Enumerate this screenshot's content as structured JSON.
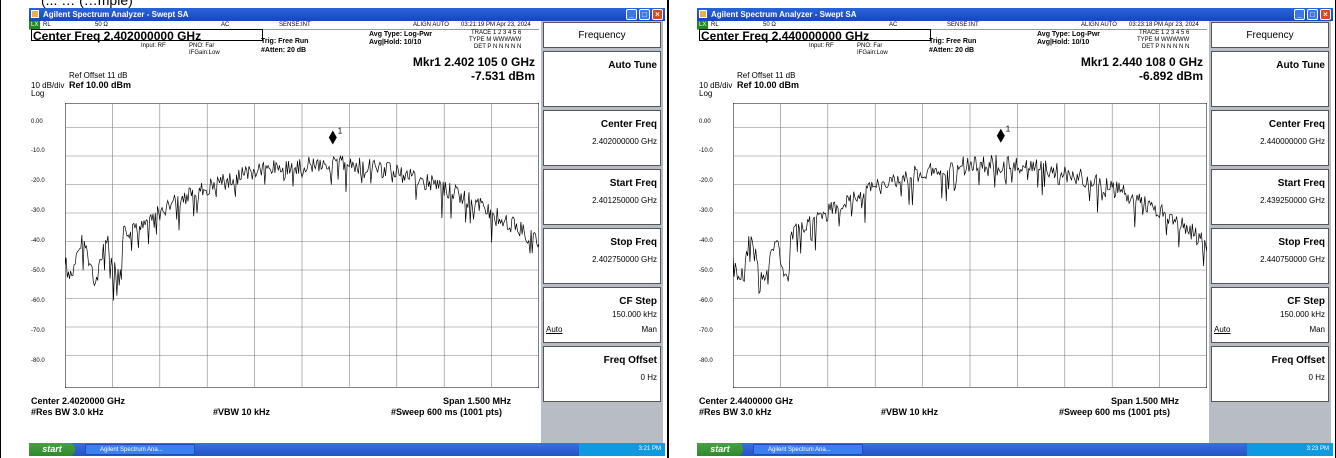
{
  "caption": "(... … (…mple)",
  "screens": [
    {
      "title": "Agilent Spectrum Analyzer - Swept SA",
      "status": {
        "rl": "RL",
        "ohm": "50 Ω",
        "ac": "AC",
        "sense": "SENSE:INT",
        "align": "ALIGN AUTO",
        "time": "03:21:19 PM Apr 23, 2024",
        "lx": "LX"
      },
      "center_freq": "Center Freq  2.402000000 GHz",
      "input": "Input: RF",
      "pno": "PNO: Far",
      "ifgain": "IFGain:Low",
      "trig": "Trig: Free Run",
      "atten": "#Atten: 20 dB",
      "avg_type": "Avg Type: Log-Pwr",
      "avg_hold": "Avg|Hold: 10/10",
      "trace_row": "TRACE 1 2 3 4 5 6",
      "type_row": "TYPE M WWWWW",
      "det_row": "DET P N N N N N",
      "mkr_freq": "Mkr1 2.402 105 0 GHz",
      "mkr_level": "-7.531 dBm",
      "ref_offset": "Ref Offset 11 dB",
      "db_div": "10 dB/div",
      "log": "Log",
      "ref_level": "Ref 10.00 dBm",
      "center_bottom": "Center 2.4020000 GHz",
      "res_bw": "#Res BW 3.0 kHz",
      "vbw": "#VBW 10 kHz",
      "span": "Span 1.500 MHz",
      "sweep": "#Sweep  600 ms (1001 pts)",
      "softkeys": {
        "menu": "Frequency",
        "auto_tune": "Auto Tune",
        "center_freq": "Center Freq",
        "center_val": "2.402000000 GHz",
        "start_freq": "Start Freq",
        "start_val": "2.401250000 GHz",
        "stop_freq": "Stop Freq",
        "stop_val": "2.402750000 GHz",
        "cf_step": "CF Step",
        "cf_step_val": "150.000 kHz",
        "auto": "Auto",
        "man": "Man",
        "freq_offset": "Freq Offset",
        "freq_offset_val": "0 Hz"
      },
      "taskbar": {
        "start": "start",
        "item": "Agilent Spectrum Ana...",
        "clock": "3:21 PM"
      },
      "marker_label": "1"
    },
    {
      "title": "Agilent Spectrum Analyzer - Swept SA",
      "status": {
        "rl": "RL",
        "ohm": "50 Ω",
        "ac": "AC",
        "sense": "SENSE:INT",
        "align": "ALIGN AUTO",
        "time": "03:23:18 PM Apr 23, 2024",
        "lx": "LX"
      },
      "center_freq": "Center Freq  2.440000000 GHz",
      "input": "Input: RF",
      "pno": "PNO: Far",
      "ifgain": "IFGain:Low",
      "trig": "Trig: Free Run",
      "atten": "#Atten: 20 dB",
      "avg_type": "Avg Type: Log-Pwr",
      "avg_hold": "Avg|Hold: 10/10",
      "trace_row": "TRACE 1 2 3 4 5 6",
      "type_row": "TYPE M WWWWW",
      "det_row": "DET P N N N N N",
      "mkr_freq": "Mkr1 2.440 108 0 GHz",
      "mkr_level": "-6.892 dBm",
      "ref_offset": "Ref Offset 11 dB",
      "db_div": "10 dB/div",
      "log": "Log",
      "ref_level": "Ref 10.00 dBm",
      "center_bottom": "Center 2.4400000 GHz",
      "res_bw": "#Res BW 3.0 kHz",
      "vbw": "#VBW 10 kHz",
      "span": "Span 1.500 MHz",
      "sweep": "#Sweep  600 ms (1001 pts)",
      "softkeys": {
        "menu": "Frequency",
        "auto_tune": "Auto Tune",
        "center_freq": "Center Freq",
        "center_val": "2.440000000 GHz",
        "start_freq": "Start Freq",
        "start_val": "2.439250000 GHz",
        "stop_freq": "Stop Freq",
        "stop_val": "2.440750000 GHz",
        "cf_step": "CF Step",
        "cf_step_val": "150.000 kHz",
        "auto": "Auto",
        "man": "Man",
        "freq_offset": "Freq Offset",
        "freq_offset_val": "0 Hz"
      },
      "taskbar": {
        "start": "start",
        "item": "Agilent Spectrum Ana...",
        "clock": "3:23 PM"
      },
      "marker_label": "1"
    }
  ],
  "y_tick_labels": [
    "0.00",
    "-10.0",
    "-20.0",
    "-30.0",
    "-40.0",
    "-50.0",
    "-60.0",
    "-70.0",
    "-80.0"
  ],
  "colors": {
    "titlebar": "#1447c2",
    "softkey_panel": "#b8bcc4",
    "trace": "#000000",
    "grid": "#808080"
  }
}
